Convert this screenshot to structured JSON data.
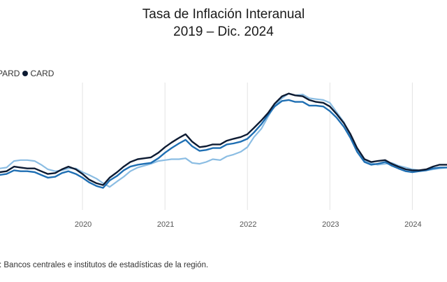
{
  "chart_data": {
    "type": "line",
    "title": "Tasa de Inflación Interanual",
    "subtitle": "2019 – Dic. 2024",
    "xlabel": "",
    "ylabel": "",
    "x_ticks": [
      "2020",
      "2021",
      "2022",
      "2023",
      "2024"
    ],
    "x_range": [
      2019.0,
      2024.42
    ],
    "y_range": [
      0,
      14
    ],
    "grid": {
      "vertical": true,
      "horizontal": false
    },
    "legend": {
      "placement": "top-left",
      "entries": [
        "PARD",
        "CARD"
      ]
    },
    "source": ": Bancos centrales e institutos de estadísticas de la región.",
    "colors": {
      "PARD": "#8bbde3",
      "CARD": "#0d1b33",
      "third": "#1f6fb3"
    },
    "series": [
      {
        "name": "PARD",
        "x": [
          2019.0,
          2019.08,
          2019.17,
          2019.25,
          2019.33,
          2019.42,
          2019.5,
          2019.58,
          2019.67,
          2019.75,
          2019.83,
          2019.92,
          2020.0,
          2020.08,
          2020.17,
          2020.25,
          2020.33,
          2020.42,
          2020.5,
          2020.58,
          2020.67,
          2020.75,
          2020.83,
          2020.92,
          2021.0,
          2021.08,
          2021.17,
          2021.25,
          2021.33,
          2021.42,
          2021.5,
          2021.58,
          2021.67,
          2021.75,
          2021.83,
          2021.92,
          2022.0,
          2022.08,
          2022.17,
          2022.25,
          2022.33,
          2022.42,
          2022.5,
          2022.58,
          2022.67,
          2022.75,
          2022.83,
          2022.92,
          2023.0,
          2023.08,
          2023.17,
          2023.25,
          2023.33,
          2023.42,
          2023.5,
          2023.58,
          2023.67,
          2023.75,
          2023.83,
          2023.92,
          2024.0,
          2024.08,
          2024.17,
          2024.25,
          2024.33,
          2024.42
        ],
        "y": [
          3.2,
          3.3,
          4.0,
          4.1,
          4.1,
          4.0,
          3.6,
          3.1,
          2.9,
          3.0,
          3.2,
          3.2,
          2.8,
          2.5,
          2.1,
          1.6,
          1.2,
          1.8,
          2.3,
          2.9,
          3.3,
          3.5,
          3.7,
          4.0,
          4.1,
          4.2,
          4.2,
          4.3,
          3.8,
          3.7,
          3.9,
          4.2,
          4.1,
          4.5,
          4.7,
          5.0,
          5.5,
          6.6,
          7.5,
          8.8,
          10.0,
          10.8,
          11.3,
          11.1,
          11.2,
          10.8,
          10.7,
          10.6,
          10.3,
          9.3,
          8.2,
          6.7,
          5.1,
          4.0,
          3.8,
          3.6,
          3.7,
          3.8,
          3.5,
          3.3,
          3.1,
          3.0,
          3.0,
          3.1,
          3.2,
          3.3
        ]
      },
      {
        "name": "CARD",
        "x": [
          2019.0,
          2019.08,
          2019.17,
          2019.25,
          2019.33,
          2019.42,
          2019.5,
          2019.58,
          2019.67,
          2019.75,
          2019.83,
          2019.92,
          2020.0,
          2020.08,
          2020.17,
          2020.25,
          2020.33,
          2020.42,
          2020.5,
          2020.58,
          2020.67,
          2020.75,
          2020.83,
          2020.92,
          2021.0,
          2021.08,
          2021.17,
          2021.25,
          2021.33,
          2021.42,
          2021.5,
          2021.58,
          2021.67,
          2021.75,
          2021.83,
          2021.92,
          2022.0,
          2022.08,
          2022.17,
          2022.25,
          2022.33,
          2022.42,
          2022.5,
          2022.58,
          2022.67,
          2022.75,
          2022.83,
          2022.92,
          2023.0,
          2023.08,
          2023.17,
          2023.25,
          2023.33,
          2023.42,
          2023.5,
          2023.58,
          2023.67,
          2023.75,
          2023.83,
          2023.92,
          2024.0,
          2024.08,
          2024.17,
          2024.25,
          2024.33,
          2024.42
        ],
        "y": [
          2.8,
          2.9,
          3.4,
          3.3,
          3.2,
          3.2,
          2.9,
          2.6,
          2.7,
          3.1,
          3.4,
          3.1,
          2.6,
          2.0,
          1.6,
          1.4,
          2.2,
          2.8,
          3.4,
          3.9,
          4.2,
          4.3,
          4.4,
          4.9,
          5.5,
          6.0,
          6.5,
          6.9,
          6.1,
          5.5,
          5.6,
          5.8,
          5.8,
          6.2,
          6.4,
          6.6,
          6.9,
          7.6,
          8.4,
          9.2,
          10.2,
          11.0,
          11.3,
          11.1,
          11.0,
          10.6,
          10.4,
          10.3,
          9.9,
          9.1,
          8.1,
          6.9,
          5.4,
          4.2,
          3.9,
          4.0,
          4.1,
          3.7,
          3.4,
          3.1,
          3.0,
          3.0,
          3.1,
          3.4,
          3.6,
          3.6
        ]
      },
      {
        "name": "",
        "x": [
          2019.0,
          2019.08,
          2019.17,
          2019.25,
          2019.33,
          2019.42,
          2019.5,
          2019.58,
          2019.67,
          2019.75,
          2019.83,
          2019.92,
          2020.0,
          2020.08,
          2020.17,
          2020.25,
          2020.33,
          2020.42,
          2020.5,
          2020.58,
          2020.67,
          2020.75,
          2020.83,
          2020.92,
          2021.0,
          2021.08,
          2021.17,
          2021.25,
          2021.33,
          2021.42,
          2021.5,
          2021.58,
          2021.67,
          2021.75,
          2021.83,
          2021.92,
          2022.0,
          2022.08,
          2022.17,
          2022.25,
          2022.33,
          2022.42,
          2022.5,
          2022.58,
          2022.67,
          2022.75,
          2022.83,
          2022.92,
          2023.0,
          2023.08,
          2023.17,
          2023.25,
          2023.33,
          2023.42,
          2023.5,
          2023.58,
          2023.67,
          2023.75,
          2023.83,
          2023.92,
          2024.0,
          2024.08,
          2024.17,
          2024.25,
          2024.33,
          2024.42
        ],
        "y": [
          2.5,
          2.6,
          3.0,
          2.9,
          2.9,
          2.8,
          2.5,
          2.2,
          2.3,
          2.7,
          2.9,
          2.6,
          2.2,
          1.7,
          1.3,
          1.1,
          1.9,
          2.4,
          3.0,
          3.4,
          3.6,
          3.7,
          3.8,
          4.3,
          4.9,
          5.4,
          5.9,
          6.3,
          5.6,
          5.1,
          5.2,
          5.4,
          5.4,
          5.8,
          5.9,
          6.1,
          6.4,
          7.1,
          8.0,
          9.0,
          9.9,
          10.5,
          10.6,
          10.4,
          10.4,
          10.0,
          10.0,
          9.9,
          9.4,
          8.7,
          7.7,
          6.5,
          5.0,
          3.9,
          3.6,
          3.7,
          3.9,
          3.5,
          3.2,
          2.9,
          2.8,
          2.9,
          3.0,
          3.2,
          3.3,
          3.3
        ]
      }
    ]
  }
}
